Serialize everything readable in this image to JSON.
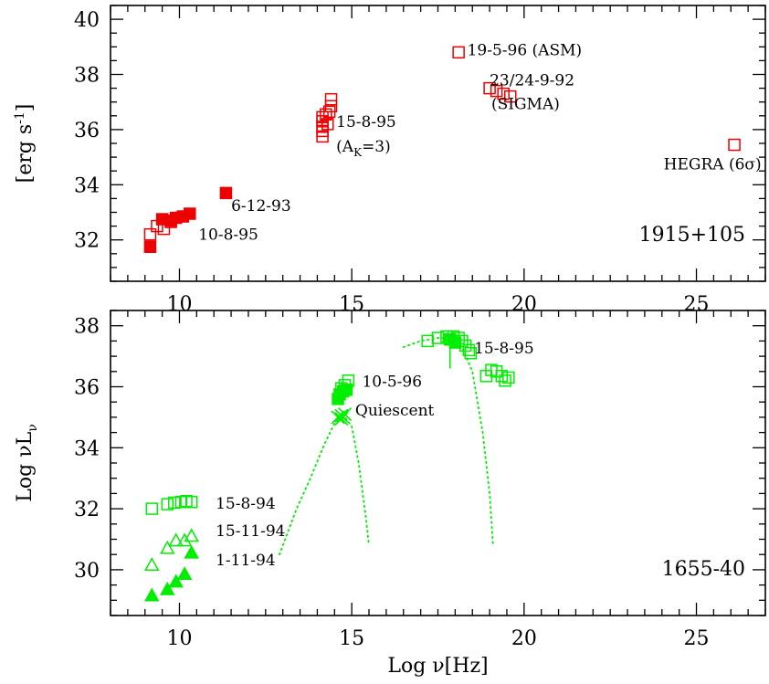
{
  "chart_data": [
    {
      "type": "scatter",
      "source_name": "1915+105",
      "xlim": [
        8,
        27
      ],
      "ylim": [
        30.5,
        40.5
      ],
      "xticks": [
        "10",
        "15",
        "20",
        "25"
      ],
      "yticks": [
        "32",
        "34",
        "36",
        "38",
        "40"
      ],
      "ylabel_prefix": "[erg s",
      "ylabel_sup": "-1",
      "ylabel_suffix": "]",
      "color": "#ee0000",
      "points": [
        {
          "marker": "square-open",
          "x": 9.15,
          "y": 32.2
        },
        {
          "marker": "square-open",
          "x": 9.35,
          "y": 32.5
        },
        {
          "marker": "square-open",
          "x": 9.55,
          "y": 32.4
        },
        {
          "marker": "square-open",
          "x": 9.75,
          "y": 32.65
        },
        {
          "marker": "square-filled",
          "x": 9.15,
          "y": 31.75
        },
        {
          "marker": "square-filled",
          "x": 9.5,
          "y": 32.75
        },
        {
          "marker": "square-filled",
          "x": 9.75,
          "y": 32.7
        },
        {
          "marker": "square-filled",
          "x": 9.9,
          "y": 32.8
        },
        {
          "marker": "square-filled",
          "x": 10.1,
          "y": 32.85
        },
        {
          "marker": "square-filled",
          "x": 10.3,
          "y": 32.95
        },
        {
          "marker": "square-filled",
          "x": 11.35,
          "y": 33.7
        },
        {
          "marker": "square-open",
          "x": 14.15,
          "y": 35.75
        },
        {
          "marker": "square-open",
          "x": 14.15,
          "y": 35.95
        },
        {
          "marker": "square-open",
          "x": 14.15,
          "y": 36.1
        },
        {
          "marker": "square-open",
          "x": 14.15,
          "y": 36.3
        },
        {
          "marker": "square-open",
          "x": 14.15,
          "y": 36.45
        },
        {
          "marker": "square-open",
          "x": 14.25,
          "y": 36.55
        },
        {
          "marker": "square-open",
          "x": 14.3,
          "y": 36.2
        },
        {
          "marker": "square-open",
          "x": 14.35,
          "y": 36.65
        },
        {
          "marker": "square-open",
          "x": 14.4,
          "y": 36.85
        },
        {
          "marker": "square-open",
          "x": 14.4,
          "y": 37.1
        },
        {
          "marker": "square-open",
          "x": 18.1,
          "y": 38.8
        },
        {
          "marker": "square-open",
          "x": 19.0,
          "y": 37.5
        },
        {
          "marker": "square-open",
          "x": 19.2,
          "y": 37.4
        },
        {
          "marker": "square-open",
          "x": 19.4,
          "y": 37.3
        },
        {
          "marker": "square-open",
          "x": 19.6,
          "y": 37.2
        },
        {
          "marker": "square-open",
          "x": 26.1,
          "y": 35.45
        }
      ],
      "annotations": [
        {
          "text": "19-5-96 (ASM)",
          "x": 18.35,
          "y": 38.7
        },
        {
          "text": "23/24-9-92",
          "x": 19.0,
          "y": 37.6
        },
        {
          "text": "(SIGMA)",
          "x": 19.05,
          "y": 36.75
        },
        {
          "text": "15-8-95",
          "x": 14.55,
          "y": 36.1
        },
        {
          "text": "(A",
          "sub": "K",
          "tail": "=3)",
          "x": 14.55,
          "y": 35.2
        },
        {
          "text": "HEGRA (6σ)",
          "x": 24.05,
          "y": 34.55
        },
        {
          "text": "6-12-93",
          "x": 11.5,
          "y": 33.05
        },
        {
          "text": "10-8-95",
          "x": 10.55,
          "y": 32.0
        }
      ]
    },
    {
      "type": "scatter",
      "source_name": "1655-40",
      "xlim": [
        8,
        27
      ],
      "ylim": [
        28.5,
        38.5
      ],
      "xticks": [
        "10",
        "15",
        "20",
        "25"
      ],
      "yticks": [
        "30",
        "32",
        "34",
        "36",
        "38"
      ],
      "xlabel": "Log ν[Hz]",
      "ylabel_prefix": "Log νL",
      "ylabel_sub": "ν",
      "color": "#00ee00",
      "points": [
        {
          "marker": "square-open",
          "x": 9.2,
          "y": 32.0
        },
        {
          "marker": "square-open",
          "x": 9.65,
          "y": 32.15
        },
        {
          "marker": "square-open",
          "x": 9.85,
          "y": 32.2
        },
        {
          "marker": "square-open",
          "x": 10.05,
          "y": 32.22
        },
        {
          "marker": "square-open",
          "x": 10.2,
          "y": 32.25
        },
        {
          "marker": "square-open",
          "x": 10.35,
          "y": 32.22
        },
        {
          "marker": "triangle-open",
          "x": 9.2,
          "y": 30.15
        },
        {
          "marker": "triangle-open",
          "x": 9.65,
          "y": 30.7
        },
        {
          "marker": "triangle-open",
          "x": 9.9,
          "y": 30.95
        },
        {
          "marker": "triangle-open",
          "x": 10.15,
          "y": 30.95
        },
        {
          "marker": "triangle-open",
          "x": 10.35,
          "y": 31.1
        },
        {
          "marker": "triangle-filled",
          "x": 9.2,
          "y": 29.15
        },
        {
          "marker": "triangle-filled",
          "x": 9.65,
          "y": 29.35
        },
        {
          "marker": "triangle-filled",
          "x": 9.9,
          "y": 29.6
        },
        {
          "marker": "triangle-filled",
          "x": 10.15,
          "y": 29.85
        },
        {
          "marker": "triangle-filled",
          "x": 10.35,
          "y": 30.55
        },
        {
          "marker": "square-filled",
          "x": 14.6,
          "y": 35.6
        },
        {
          "marker": "square-filled",
          "x": 14.65,
          "y": 35.75
        },
        {
          "marker": "square-filled",
          "x": 14.75,
          "y": 35.85
        },
        {
          "marker": "square-filled",
          "x": 14.85,
          "y": 35.9
        },
        {
          "marker": "square-open",
          "x": 14.7,
          "y": 35.95
        },
        {
          "marker": "square-open",
          "x": 14.8,
          "y": 36.05
        },
        {
          "marker": "square-open",
          "x": 14.9,
          "y": 36.2
        },
        {
          "marker": "cross",
          "x": 14.6,
          "y": 35.0
        },
        {
          "marker": "cross",
          "x": 14.7,
          "y": 35.05
        },
        {
          "marker": "cross",
          "x": 14.8,
          "y": 35.1
        },
        {
          "marker": "cross",
          "x": 14.7,
          "y": 34.95
        },
        {
          "marker": "square-open",
          "x": 17.2,
          "y": 37.5
        },
        {
          "marker": "square-open",
          "x": 17.5,
          "y": 37.6
        },
        {
          "marker": "square-open",
          "x": 17.75,
          "y": 37.65
        },
        {
          "marker": "square-open",
          "x": 17.95,
          "y": 37.65
        },
        {
          "marker": "square-open",
          "x": 18.1,
          "y": 37.6
        },
        {
          "marker": "square-open",
          "x": 18.2,
          "y": 37.5
        },
        {
          "marker": "square-open",
          "x": 18.3,
          "y": 37.35
        },
        {
          "marker": "square-open",
          "x": 18.4,
          "y": 37.2
        },
        {
          "marker": "square-open",
          "x": 18.45,
          "y": 37.1
        },
        {
          "marker": "square-filled",
          "x": 17.85,
          "y": 37.55
        },
        {
          "marker": "square-filled",
          "x": 18.0,
          "y": 37.45
        },
        {
          "marker": "square-open",
          "x": 18.9,
          "y": 36.35
        },
        {
          "marker": "square-open",
          "x": 19.05,
          "y": 36.55
        },
        {
          "marker": "square-open",
          "x": 19.2,
          "y": 36.5
        },
        {
          "marker": "square-open",
          "x": 19.35,
          "y": 36.35
        },
        {
          "marker": "square-open",
          "x": 19.45,
          "y": 36.2
        },
        {
          "marker": "square-open",
          "x": 19.55,
          "y": 36.3
        }
      ],
      "segments": [
        {
          "x1": 17.85,
          "y1": 37.55,
          "x2": 17.85,
          "y2": 36.6
        }
      ],
      "dotted_curves": [
        {
          "x": [
            12.9,
            13.4,
            13.8,
            14.2,
            14.5,
            14.8,
            15.0,
            15.2,
            15.4,
            15.5
          ],
          "y": [
            30.5,
            32.0,
            33.0,
            34.1,
            34.8,
            35.0,
            34.7,
            33.5,
            31.8,
            30.8
          ]
        },
        {
          "x": [
            16.5,
            17.0,
            17.5,
            17.85,
            18.2,
            18.5,
            18.8,
            19.0,
            19.1
          ],
          "y": [
            37.3,
            37.5,
            37.6,
            37.6,
            37.3,
            36.5,
            34.5,
            32.5,
            30.8
          ]
        }
      ],
      "annotations": [
        {
          "text": "15-8-95",
          "x": 18.55,
          "y": 37.1
        },
        {
          "text": "10-5-96",
          "x": 15.3,
          "y": 36.0
        },
        {
          "text": "Quiescent",
          "x": 15.1,
          "y": 35.05
        },
        {
          "text": "15-8-94",
          "x": 11.05,
          "y": 32.0
        },
        {
          "text": "15-11-94",
          "x": 11.05,
          "y": 31.1
        },
        {
          "text": "1-11-94",
          "x": 11.05,
          "y": 30.15
        }
      ]
    }
  ]
}
